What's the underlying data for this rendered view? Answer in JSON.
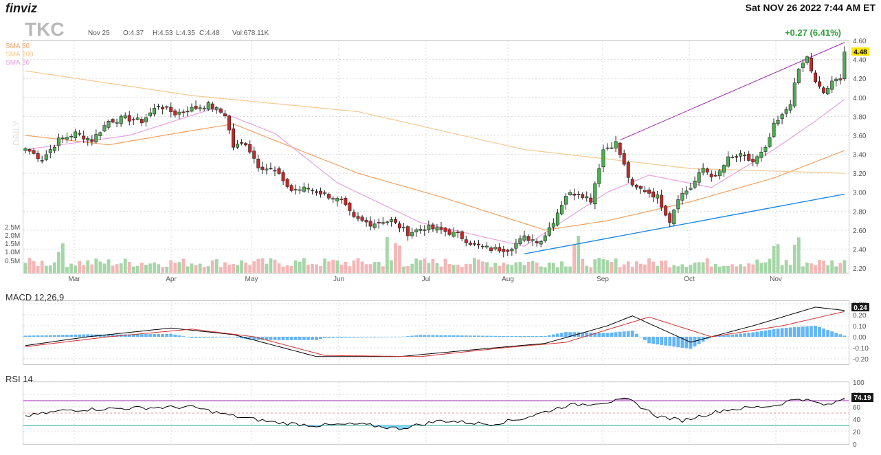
{
  "header": {
    "logo": "finviz",
    "datetime": "Sat NOV 26 2022 7:44 AM ET",
    "ticker": "TKC",
    "date": "Nov 25",
    "open": "O:4.37",
    "high": "H:4.53",
    "low": "L:4.35",
    "close": "C:4.48",
    "volume": "Vol:678.11K",
    "change": "+0.27 (6.41%)",
    "last_price": "4.48",
    "watermark": "DAILY"
  },
  "legend": [
    {
      "label": "SMA 50",
      "color": "#f0a060"
    },
    {
      "label": "SMA 200",
      "color": "#f5c890"
    },
    {
      "label": "SMA 20",
      "color": "#e8a0e0"
    }
  ],
  "colors": {
    "up": "#4caf50",
    "down": "#c62828",
    "vol_up": "#a5d6a7",
    "vol_down": "#f4b6b6",
    "macd_line": "#000000",
    "signal_line": "#d32f2f",
    "histogram": "#64b5f6",
    "rsi_line": "#000000",
    "rsi_overbought": "#9c27b0",
    "rsi_oversold": "#26a69a",
    "trend_upper": "#9c27b0",
    "trend_lower": "#1e88e5"
  },
  "chart_data": [
    {
      "type": "candlestick",
      "title": "TKC",
      "price_ticks": [
        "4.60",
        "4.40",
        "4.20",
        "4.00",
        "3.80",
        "3.60",
        "3.40",
        "3.20",
        "3.00",
        "2.80",
        "2.60",
        "2.40",
        "2.20"
      ],
      "volume_ticks": [
        "2.5M",
        "2.0M",
        "1.5M",
        "1.0M",
        "0.5M"
      ],
      "month_labels": [
        "Mar",
        "Apr",
        "May",
        "Jun",
        "Jul",
        "Aug",
        "Sep",
        "Oct",
        "Nov"
      ],
      "ylim": [
        2.2,
        4.6
      ],
      "close_keypoints": [
        {
          "session": 0,
          "close": 3.46
        },
        {
          "session": 4,
          "close": 3.35
        },
        {
          "session": 8,
          "close": 3.55
        },
        {
          "session": 12,
          "close": 3.62
        },
        {
          "session": 16,
          "close": 3.55
        },
        {
          "session": 20,
          "close": 3.75
        },
        {
          "session": 24,
          "close": 3.78
        },
        {
          "session": 28,
          "close": 3.75
        },
        {
          "session": 32,
          "close": 3.92
        },
        {
          "session": 36,
          "close": 3.83
        },
        {
          "session": 40,
          "close": 3.88
        },
        {
          "session": 44,
          "close": 3.92
        },
        {
          "session": 48,
          "close": 3.82
        },
        {
          "session": 50,
          "close": 3.48
        },
        {
          "session": 53,
          "close": 3.52
        },
        {
          "session": 56,
          "close": 3.28
        },
        {
          "session": 60,
          "close": 3.22
        },
        {
          "session": 64,
          "close": 3.02
        },
        {
          "session": 68,
          "close": 3.04
        },
        {
          "session": 72,
          "close": 2.98
        },
        {
          "session": 76,
          "close": 2.9
        },
        {
          "session": 79,
          "close": 2.72
        },
        {
          "session": 83,
          "close": 2.67
        },
        {
          "session": 88,
          "close": 2.7
        },
        {
          "session": 92,
          "close": 2.57
        },
        {
          "session": 96,
          "close": 2.63
        },
        {
          "session": 100,
          "close": 2.6
        },
        {
          "session": 104,
          "close": 2.55
        },
        {
          "session": 108,
          "close": 2.44
        },
        {
          "session": 112,
          "close": 2.4
        },
        {
          "session": 116,
          "close": 2.4
        },
        {
          "session": 120,
          "close": 2.52
        },
        {
          "session": 124,
          "close": 2.48
        },
        {
          "session": 127,
          "close": 2.7
        },
        {
          "session": 130,
          "close": 2.97
        },
        {
          "session": 133,
          "close": 3.0
        },
        {
          "session": 136,
          "close": 2.92
        },
        {
          "session": 139,
          "close": 3.45
        },
        {
          "session": 142,
          "close": 3.52
        },
        {
          "session": 144,
          "close": 3.28
        },
        {
          "session": 146,
          "close": 3.05
        },
        {
          "session": 149,
          "close": 3.02
        },
        {
          "session": 152,
          "close": 2.95
        },
        {
          "session": 155,
          "close": 2.7
        },
        {
          "session": 157,
          "close": 2.95
        },
        {
          "session": 160,
          "close": 3.05
        },
        {
          "session": 163,
          "close": 3.25
        },
        {
          "session": 166,
          "close": 3.15
        },
        {
          "session": 169,
          "close": 3.35
        },
        {
          "session": 172,
          "close": 3.38
        },
        {
          "session": 175,
          "close": 3.32
        },
        {
          "session": 178,
          "close": 3.45
        },
        {
          "session": 180,
          "close": 3.7
        },
        {
          "session": 182,
          "close": 3.8
        },
        {
          "session": 184,
          "close": 3.95
        },
        {
          "session": 186,
          "close": 4.3
        },
        {
          "session": 188,
          "close": 4.42
        },
        {
          "session": 190,
          "close": 4.15
        },
        {
          "session": 192,
          "close": 4.05
        },
        {
          "session": 194,
          "close": 4.15
        },
        {
          "session": 196,
          "close": 4.21
        },
        {
          "session": 197,
          "close": 4.48
        }
      ],
      "series": [
        {
          "name": "SMA 50",
          "keypoints": [
            {
              "session": 0,
              "value": 3.6
            },
            {
              "session": 20,
              "value": 3.5
            },
            {
              "session": 40,
              "value": 3.65
            },
            {
              "session": 50,
              "value": 3.72
            },
            {
              "session": 80,
              "value": 3.2
            },
            {
              "session": 100,
              "value": 2.95
            },
            {
              "session": 125,
              "value": 2.6
            },
            {
              "session": 140,
              "value": 2.7
            },
            {
              "session": 160,
              "value": 2.9
            },
            {
              "session": 180,
              "value": 3.15
            },
            {
              "session": 197,
              "value": 3.44
            }
          ]
        },
        {
          "name": "SMA 200",
          "keypoints": [
            {
              "session": 0,
              "value": 4.28
            },
            {
              "session": 40,
              "value": 4.02
            },
            {
              "session": 80,
              "value": 3.85
            },
            {
              "session": 120,
              "value": 3.45
            },
            {
              "session": 160,
              "value": 3.25
            },
            {
              "session": 197,
              "value": 3.2
            }
          ]
        },
        {
          "name": "SMA 20",
          "keypoints": [
            {
              "session": 0,
              "value": 3.45
            },
            {
              "session": 25,
              "value": 3.6
            },
            {
              "session": 45,
              "value": 3.88
            },
            {
              "session": 60,
              "value": 3.62
            },
            {
              "session": 75,
              "value": 3.1
            },
            {
              "session": 95,
              "value": 2.68
            },
            {
              "session": 120,
              "value": 2.43
            },
            {
              "session": 140,
              "value": 3.0
            },
            {
              "session": 150,
              "value": 3.18
            },
            {
              "session": 165,
              "value": 3.05
            },
            {
              "session": 180,
              "value": 3.45
            },
            {
              "session": 190,
              "value": 3.75
            },
            {
              "session": 197,
              "value": 3.98
            }
          ]
        }
      ],
      "trendlines": [
        {
          "name": "upper",
          "from": {
            "session": 143,
            "value": 3.55
          },
          "to": {
            "session": 197,
            "value": 4.58
          }
        },
        {
          "name": "lower",
          "from": {
            "session": 120,
            "value": 2.35
          },
          "to": {
            "session": 197,
            "value": 2.98
          }
        }
      ]
    },
    {
      "type": "line",
      "title": "MACD 12,26,9",
      "ticks": [
        "0.30",
        "0.20",
        "0.10",
        "0.00",
        "-0.10",
        "-0.20"
      ],
      "last_value": "0.24",
      "ylim": [
        -0.25,
        0.32
      ],
      "series": [
        {
          "name": "MACD",
          "keypoints": [
            {
              "session": 0,
              "value": -0.08
            },
            {
              "session": 15,
              "value": 0.0
            },
            {
              "session": 35,
              "value": 0.08
            },
            {
              "session": 50,
              "value": 0.02
            },
            {
              "session": 70,
              "value": -0.18
            },
            {
              "session": 90,
              "value": -0.18
            },
            {
              "session": 110,
              "value": -0.11
            },
            {
              "session": 125,
              "value": -0.06
            },
            {
              "session": 140,
              "value": 0.1
            },
            {
              "session": 146,
              "value": 0.19
            },
            {
              "session": 160,
              "value": -0.05
            },
            {
              "session": 175,
              "value": 0.1
            },
            {
              "session": 190,
              "value": 0.27
            },
            {
              "session": 197,
              "value": 0.24
            }
          ]
        },
        {
          "name": "Signal",
          "keypoints": [
            {
              "session": 0,
              "value": -0.09
            },
            {
              "session": 20,
              "value": 0.0
            },
            {
              "session": 40,
              "value": 0.07
            },
            {
              "session": 55,
              "value": 0.0
            },
            {
              "session": 72,
              "value": -0.17
            },
            {
              "session": 95,
              "value": -0.18
            },
            {
              "session": 115,
              "value": -0.1
            },
            {
              "session": 130,
              "value": -0.05
            },
            {
              "session": 150,
              "value": 0.18
            },
            {
              "session": 165,
              "value": 0.0
            },
            {
              "session": 182,
              "value": 0.1
            },
            {
              "session": 197,
              "value": 0.23
            }
          ]
        }
      ]
    },
    {
      "type": "line",
      "title": "RSI 14",
      "ticks": [
        "100",
        "80",
        "60",
        "40",
        "20",
        "0"
      ],
      "last_value": "74.19",
      "ylim": [
        0,
        100
      ],
      "overbought": 70,
      "oversold": 30,
      "series": [
        {
          "name": "RSI 14",
          "keypoints": [
            {
              "session": 0,
              "value": 45
            },
            {
              "session": 10,
              "value": 55
            },
            {
              "session": 25,
              "value": 58
            },
            {
              "session": 40,
              "value": 60
            },
            {
              "session": 50,
              "value": 45
            },
            {
              "session": 60,
              "value": 35
            },
            {
              "session": 70,
              "value": 30
            },
            {
              "session": 80,
              "value": 32
            },
            {
              "session": 90,
              "value": 25
            },
            {
              "session": 100,
              "value": 38
            },
            {
              "session": 112,
              "value": 32
            },
            {
              "session": 120,
              "value": 42
            },
            {
              "session": 130,
              "value": 62
            },
            {
              "session": 140,
              "value": 68
            },
            {
              "session": 145,
              "value": 72
            },
            {
              "session": 152,
              "value": 45
            },
            {
              "session": 158,
              "value": 38
            },
            {
              "session": 168,
              "value": 55
            },
            {
              "session": 180,
              "value": 62
            },
            {
              "session": 186,
              "value": 74
            },
            {
              "session": 193,
              "value": 62
            },
            {
              "session": 197,
              "value": 74.19
            }
          ]
        }
      ]
    }
  ]
}
